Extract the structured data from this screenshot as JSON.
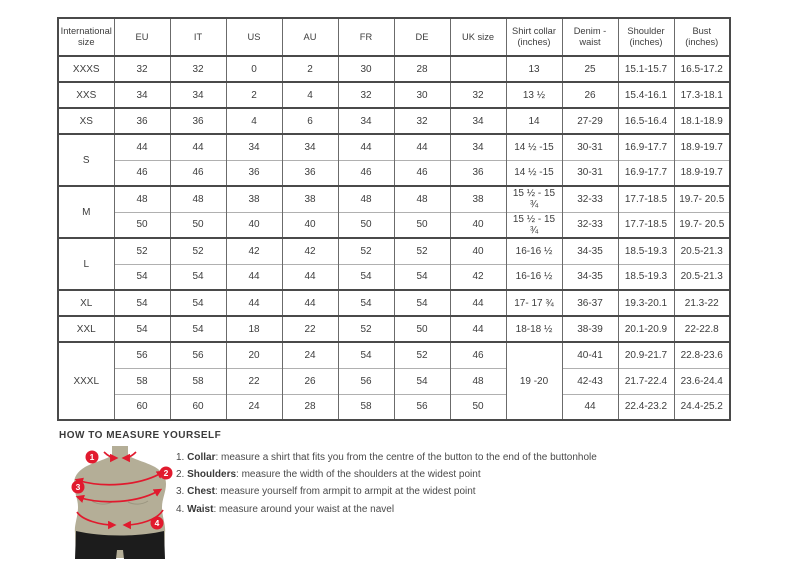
{
  "accent_colors": {
    "marker_red": "#e11a2e",
    "torso_tan": "#b4ae97",
    "shorts_black": "#1c1c1c",
    "border_dark": "#4a4a4a",
    "border_light": "#b0b0b0"
  },
  "size_table": {
    "columns": [
      "International\nsize",
      "EU",
      "IT",
      "US",
      "AU",
      "FR",
      "DE",
      "UK size",
      "Shirt collar\n(inches)",
      "Denim -\nwaist",
      "Shoulder\n(inches)",
      "Bust (inches)"
    ],
    "groups": [
      {
        "size": "XXXS",
        "rows": [
          [
            "32",
            "32",
            "0",
            "2",
            "30",
            "28",
            "",
            "13",
            "25",
            "15.1-15.7",
            "16.5-17.2"
          ]
        ]
      },
      {
        "size": "XXS",
        "rows": [
          [
            "34",
            "34",
            "2",
            "4",
            "32",
            "30",
            "32",
            "13 ½",
            "26",
            "15.4-16.1",
            "17.3-18.1"
          ]
        ]
      },
      {
        "size": "XS",
        "rows": [
          [
            "36",
            "36",
            "4",
            "6",
            "34",
            "32",
            "34",
            "14",
            "27-29",
            "16.5-16.4",
            "18.1-18.9"
          ]
        ]
      },
      {
        "size": "S",
        "rows": [
          [
            "44",
            "44",
            "34",
            "34",
            "44",
            "44",
            "34",
            "14 ½ -15",
            "30-31",
            "16.9-17.7",
            "18.9-19.7"
          ],
          [
            "46",
            "46",
            "36",
            "36",
            "46",
            "46",
            "36",
            "14 ½ -15",
            "30-31",
            "16.9-17.7",
            "18.9-19.7"
          ]
        ]
      },
      {
        "size": "M",
        "rows": [
          [
            "48",
            "48",
            "38",
            "38",
            "48",
            "48",
            "38",
            "15 ½ - 15 ¾",
            "32-33",
            "17.7-18.5",
            "19.7- 20.5"
          ],
          [
            "50",
            "50",
            "40",
            "40",
            "50",
            "50",
            "40",
            "15 ½ - 15 ¾",
            "32-33",
            "17.7-18.5",
            "19.7- 20.5"
          ]
        ]
      },
      {
        "size": "L",
        "rows": [
          [
            "52",
            "52",
            "42",
            "42",
            "52",
            "52",
            "40",
            "16-16 ½",
            "34-35",
            "18.5-19.3",
            "20.5-21.3"
          ],
          [
            "54",
            "54",
            "44",
            "44",
            "54",
            "54",
            "42",
            "16-16 ½",
            "34-35",
            "18.5-19.3",
            "20.5-21.3"
          ]
        ]
      },
      {
        "size": "XL",
        "rows": [
          [
            "54",
            "54",
            "44",
            "44",
            "54",
            "54",
            "44",
            "17- 17 ¾",
            "36-37",
            "19.3-20.1",
            "21.3-22"
          ]
        ]
      },
      {
        "size": "XXL",
        "rows": [
          [
            "54",
            "54",
            "18",
            "22",
            "52",
            "50",
            "44",
            "18-18 ½",
            "38-39",
            "20.1-20.9",
            "22-22.8"
          ]
        ]
      },
      {
        "size": "XXXL",
        "collar": "19 -20",
        "rows": [
          [
            "56",
            "56",
            "20",
            "24",
            "54",
            "52",
            "46",
            "40-41",
            "20.9-21.7",
            "22.8-23.6"
          ],
          [
            "58",
            "58",
            "22",
            "26",
            "56",
            "54",
            "48",
            "42-43",
            "21.7-22.4",
            "23.6-24.4"
          ],
          [
            "60",
            "60",
            "24",
            "28",
            "58",
            "56",
            "50",
            "44",
            "22.4-23.2",
            "24.4-25.2"
          ]
        ]
      }
    ]
  },
  "measure": {
    "heading": "HOW TO MEASURE YOURSELF",
    "marker_numbers": [
      "1",
      "2",
      "3",
      "4"
    ],
    "items": [
      {
        "num": "1.",
        "label": "Collar",
        "text": ": measure a shirt that fits you from the centre of the button to the end of the buttonhole"
      },
      {
        "num": "2.",
        "label": "Shoulders",
        "text": ": measure the width of the shoulders at the widest point"
      },
      {
        "num": "3.",
        "label": "Chest",
        "text": ": measure yourself from armpit to armpit at the widest point"
      },
      {
        "num": "4.",
        "label": "Waist",
        "text": ": measure around your waist at the navel"
      }
    ]
  }
}
